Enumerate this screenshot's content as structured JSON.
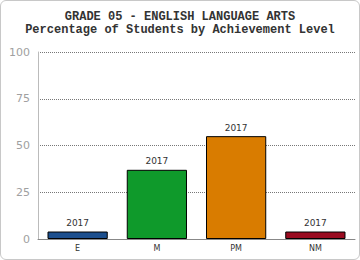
{
  "chart_data": {
    "type": "bar",
    "title": "GRADE 05 - ENGLISH LANGUAGE ARTS",
    "subtitle": "Percentage of Students by Achievement Level",
    "categories": [
      "E",
      "M",
      "PM",
      "NM"
    ],
    "series": [
      {
        "name": "2017",
        "values": [
          4,
          37,
          55,
          4
        ],
        "colors": [
          "#1c4f8e",
          "#0f9a2b",
          "#d97c00",
          "#9a0b20"
        ]
      }
    ],
    "ylim": [
      0,
      100
    ],
    "yticks": [
      0,
      25,
      50,
      75,
      100
    ],
    "grid": true
  }
}
